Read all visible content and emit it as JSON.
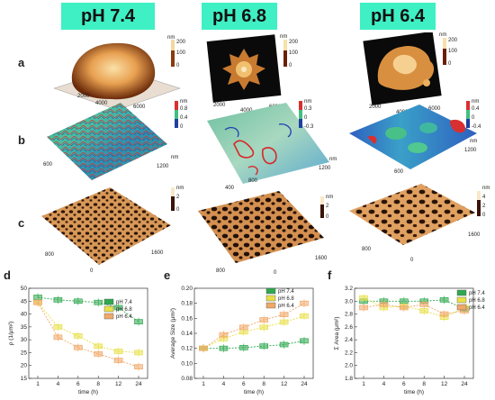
{
  "headers": [
    "pH 7.4",
    "pH 6.8",
    "pH 6.4"
  ],
  "row_labels": [
    "a",
    "b",
    "c"
  ],
  "panel_labels": [
    "d",
    "e",
    "f"
  ],
  "afm_a": [
    {
      "scale_unit": "nm",
      "scale_ticks": [
        "200",
        "100",
        "0"
      ],
      "axis_ticks": [
        "2000",
        "4000",
        "6000"
      ]
    },
    {
      "scale_unit": "nm",
      "scale_ticks": [
        "200",
        "100",
        "0"
      ],
      "axis_ticks": [
        "2000",
        "4000",
        "6000"
      ]
    },
    {
      "scale_unit": "nm",
      "scale_ticks": [
        "200",
        "100",
        "0"
      ],
      "axis_ticks": [
        "2000",
        "4000",
        "6000"
      ]
    }
  ],
  "afm_b": [
    {
      "scale_unit": "nm",
      "scale_ticks": [
        "0.8",
        "0.4",
        "0"
      ],
      "axis_unit": "nm",
      "axis_ticks": [
        "600",
        "1200"
      ]
    },
    {
      "scale_unit": "nm",
      "scale_ticks": [
        "0.3",
        "0",
        "-0.3"
      ],
      "axis_unit": "nm",
      "axis_ticks": [
        "400",
        "800",
        "1200"
      ]
    },
    {
      "scale_unit": "nm",
      "scale_ticks": [
        "0.4",
        "0",
        "-0.4"
      ],
      "axis_unit": "nm",
      "axis_ticks": [
        "600",
        "1200"
      ]
    }
  ],
  "afm_c": [
    {
      "scale_unit": "nm",
      "scale_ticks": [
        "2",
        "0"
      ],
      "axis_ticks": [
        "800",
        "1600",
        "0"
      ]
    },
    {
      "scale_unit": "nm",
      "scale_ticks": [
        "2",
        "0"
      ],
      "axis_ticks": [
        "800",
        "1600",
        "0"
      ]
    },
    {
      "scale_unit": "nm",
      "scale_ticks": [
        "4",
        "2",
        "0"
      ],
      "axis_ticks": [
        "800",
        "1600",
        "0"
      ]
    }
  ],
  "legend": [
    "pH 7.4",
    "pH 6.8",
    "pH 6.4"
  ],
  "colors": {
    "ph74": "#2fa84f",
    "ph68": "#e8e04a",
    "ph64": "#f0a868",
    "header_bg": "#3ef0c4"
  },
  "chart_data": [
    {
      "type": "scatter",
      "ylabel": "ρ (1/μm²)",
      "xlabel": "time (h)",
      "x": [
        1,
        4,
        6,
        8,
        12,
        24
      ],
      "ylim": [
        15,
        50
      ],
      "yticks": [
        "15",
        "20",
        "25",
        "30",
        "35",
        "40",
        "45",
        "50"
      ],
      "series": [
        {
          "name": "pH 7.4",
          "values": [
            46.5,
            45.5,
            45,
            44.5,
            42.5,
            37
          ]
        },
        {
          "name": "pH 6.8",
          "values": [
            44.5,
            35,
            31.5,
            27.5,
            25.5,
            25
          ]
        },
        {
          "name": "pH 6.4",
          "values": [
            44.5,
            31,
            27,
            24.5,
            22,
            19.5
          ]
        }
      ]
    },
    {
      "type": "scatter",
      "ylabel": "Average Size (μm²)",
      "xlabel": "time (h)",
      "x": [
        1,
        4,
        6,
        8,
        12,
        24
      ],
      "ylim": [
        0.08,
        0.2
      ],
      "yticks": [
        "0.08",
        "0.10",
        "0.12",
        "0.14",
        "0.16",
        "0.18",
        "0.20"
      ],
      "series": [
        {
          "name": "pH 7.4",
          "values": [
            0.12,
            0.12,
            0.121,
            0.123,
            0.125,
            0.13
          ]
        },
        {
          "name": "pH 6.8",
          "values": [
            0.12,
            0.133,
            0.142,
            0.148,
            0.155,
            0.163
          ]
        },
        {
          "name": "pH 6.4",
          "values": [
            0.12,
            0.138,
            0.148,
            0.158,
            0.165,
            0.18
          ]
        }
      ]
    },
    {
      "type": "scatter",
      "ylabel": "Σ Area (μm²)",
      "xlabel": "time (h)",
      "x": [
        1,
        4,
        6,
        8,
        12,
        24
      ],
      "ylim": [
        1.8,
        3.2
      ],
      "yticks": [
        "1.8",
        "2.0",
        "2.2",
        "2.4",
        "2.6",
        "2.8",
        "3.0",
        "3.2"
      ],
      "series": [
        {
          "name": "pH 7.4",
          "values": [
            3.0,
            3.0,
            3.0,
            3.0,
            3.02,
            2.88
          ]
        },
        {
          "name": "pH 6.8",
          "values": [
            3.05,
            2.9,
            2.92,
            2.85,
            2.75,
            2.9
          ]
        },
        {
          "name": "pH 6.4",
          "values": [
            2.9,
            2.95,
            2.9,
            2.95,
            2.8,
            2.85
          ]
        }
      ]
    }
  ]
}
